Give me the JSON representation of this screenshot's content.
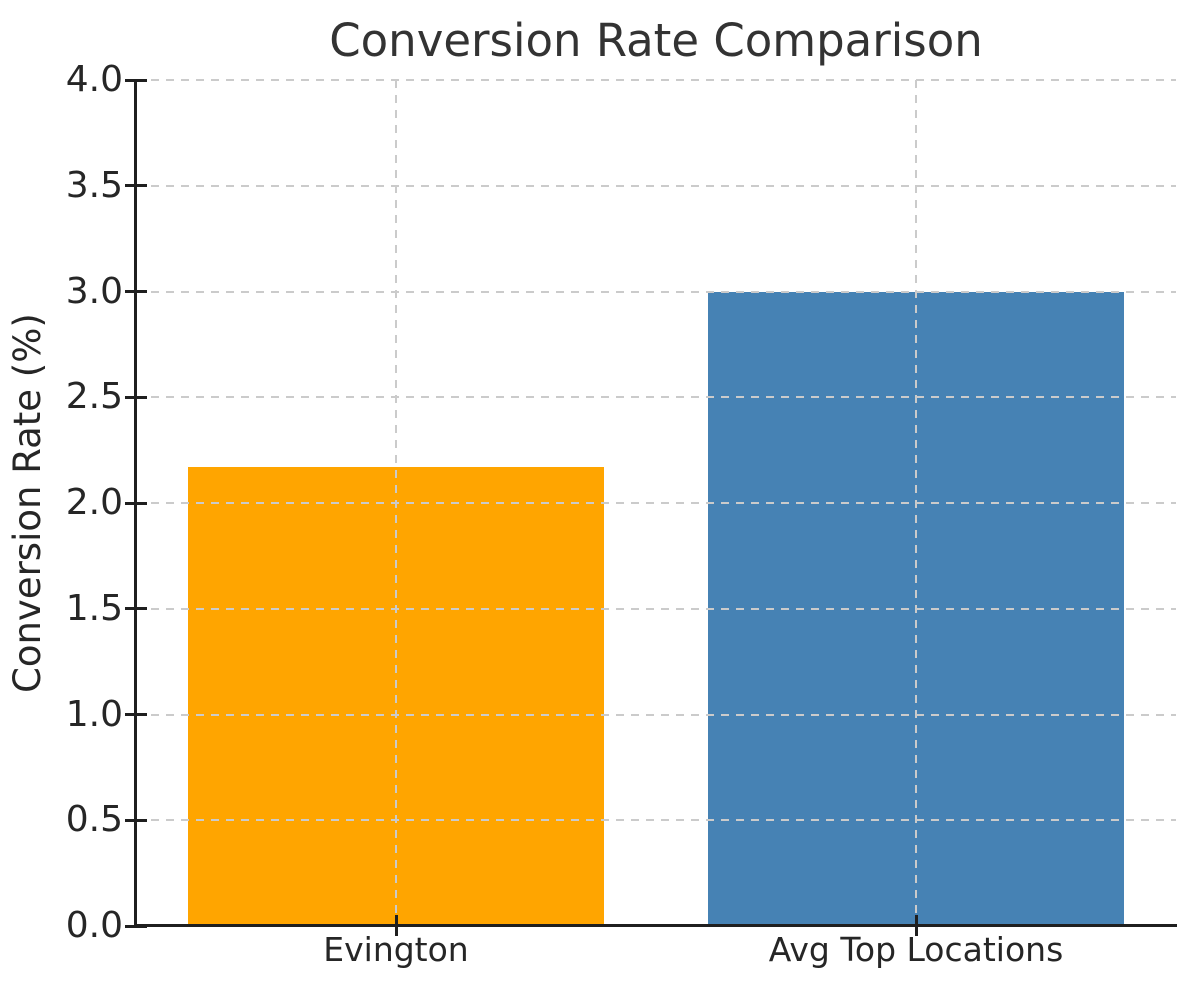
{
  "figure": {
    "background_color": "#ffffff"
  },
  "chart_data": {
    "type": "bar",
    "title": "Conversion Rate Comparison",
    "xlabel": "",
    "ylabel": "Conversion Rate (%)",
    "categories": [
      "Evington",
      "Avg Top Locations"
    ],
    "values": [
      2.17,
      3.0
    ],
    "bar_colors": [
      "#FFA500",
      "#4682B4"
    ],
    "ylim": [
      0,
      4
    ],
    "yticks": [
      0.0,
      0.5,
      1.0,
      1.5,
      2.0,
      2.5,
      3.0,
      3.5,
      4.0
    ],
    "ytick_labels": [
      "0.0",
      "0.5",
      "1.0",
      "1.5",
      "2.0",
      "2.5",
      "3.0",
      "3.5",
      "4.0"
    ],
    "grid": true,
    "grid_axes": "both",
    "grid_style": "dashed",
    "grid_color": "#cbcbcb",
    "grid_above_bars": true,
    "bar_width_fraction": 0.8,
    "legend": null,
    "spine_color": "#1f1f1f",
    "text_color": "#262626",
    "title_color": "#333333"
  }
}
